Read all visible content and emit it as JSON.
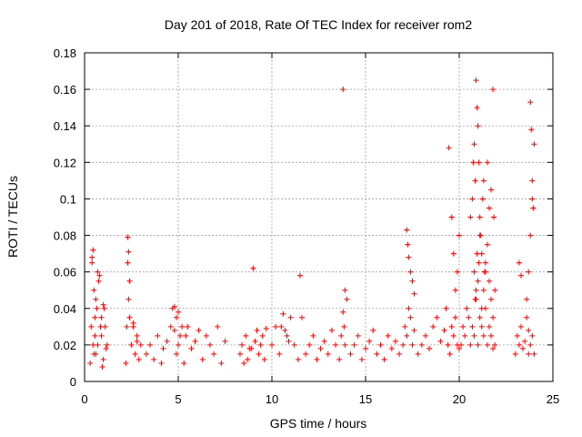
{
  "chart_data": {
    "type": "scatter",
    "title": "Day 201 of 2018, Rate Of TEC Index for receiver rom2",
    "xlabel": "GPS time / hours",
    "ylabel": "ROTI / TECUs",
    "xlim": [
      0,
      25
    ],
    "ylim": [
      0,
      0.18
    ],
    "x_ticks": [
      "0",
      "5",
      "10",
      "15",
      "20",
      "25"
    ],
    "y_ticks": [
      "0",
      "0.02",
      "0.04",
      "0.06",
      "0.08",
      "0.1",
      "0.12",
      "0.14",
      "0.16",
      "0.18"
    ],
    "grid": true,
    "marker": "plus",
    "color": "#ff0000",
    "series": [
      {
        "x": [
          0.3,
          0.35,
          0.4,
          0.45,
          0.5,
          0.55,
          0.6,
          0.65,
          0.7,
          0.8,
          0.9,
          1.0,
          1.1,
          1.2,
          0.4,
          0.5,
          0.6,
          0.75,
          0.85,
          0.95,
          1.05,
          1.15,
          0.45,
          0.55,
          0.7,
          0.9,
          1.0,
          2.2,
          2.25,
          2.3,
          2.35,
          2.4,
          2.5,
          2.6,
          2.7,
          2.8,
          2.9,
          3.0,
          2.3,
          2.35,
          2.4,
          2.6,
          2.8,
          3.3,
          3.5,
          3.7,
          3.9,
          4.1,
          4.2,
          4.4,
          4.6,
          4.7,
          4.8,
          4.9,
          5.0,
          5.1,
          5.3,
          5.5,
          5.7,
          5.9,
          6.1,
          6.3,
          6.5,
          6.7,
          6.9,
          7.1,
          7.3,
          7.5,
          4.8,
          4.9,
          5.0,
          5.2,
          5.4,
          8.3,
          8.4,
          8.5,
          8.6,
          8.7,
          8.8,
          9.0,
          9.1,
          9.2,
          9.3,
          9.4,
          9.5,
          9.6,
          9.7,
          8.9,
          10.0,
          10.2,
          10.4,
          10.6,
          10.8,
          11.0,
          11.2,
          11.4,
          10.5,
          10.7,
          10.9,
          11.5,
          11.6,
          11.8,
          12.0,
          12.2,
          12.4,
          12.6,
          12.8,
          13.0,
          13.2,
          13.4,
          13.6,
          13.7,
          13.8,
          13.9,
          14.0,
          13.8,
          13.85,
          13.9,
          14.2,
          14.4,
          14.6,
          14.8,
          15.0,
          15.2,
          15.4,
          15.6,
          15.8,
          16.0,
          16.2,
          16.4,
          16.6,
          16.8,
          17.0,
          17.1,
          17.2,
          17.3,
          17.4,
          17.5,
          17.6,
          17.2,
          17.25,
          17.3,
          17.4,
          17.5,
          17.6,
          17.8,
          18.0,
          18.2,
          18.4,
          18.6,
          18.8,
          19.0,
          19.2,
          19.3,
          19.4,
          19.5,
          19.6,
          19.7,
          19.8,
          19.9,
          20.0,
          19.45,
          19.6,
          19.7,
          19.8,
          19.9,
          20.0,
          20.1,
          20.2,
          20.3,
          20.4,
          20.5,
          20.6,
          20.7,
          20.8,
          20.9,
          21.0,
          21.1,
          21.2,
          21.3,
          21.4,
          21.5,
          21.6,
          21.7,
          21.8,
          21.9,
          20.6,
          20.7,
          20.75,
          20.8,
          20.85,
          20.9,
          20.95,
          21.0,
          21.05,
          21.1,
          21.15,
          21.2,
          21.25,
          21.3,
          21.35,
          21.4,
          21.5,
          21.6,
          21.7,
          21.8,
          21.85,
          21.9,
          20.8,
          20.85,
          20.9,
          20.95,
          21.0,
          21.05,
          21.1,
          21.2,
          21.3,
          21.4,
          21.5,
          21.6,
          21.7,
          21.8,
          23.0,
          23.1,
          23.2,
          23.3,
          23.4,
          23.5,
          23.6,
          23.7,
          23.8,
          23.9,
          24.0,
          23.2,
          23.3,
          23.6,
          23.7,
          23.8,
          23.9,
          23.95,
          24.0,
          23.7,
          23.8,
          23.85,
          23.9
        ],
        "y": [
          0.01,
          0.03,
          0.065,
          0.072,
          0.05,
          0.025,
          0.015,
          0.04,
          0.02,
          0.058,
          0.035,
          0.012,
          0.03,
          0.02,
          0.068,
          0.015,
          0.045,
          0.055,
          0.03,
          0.008,
          0.04,
          0.018,
          0.02,
          0.035,
          0.06,
          0.025,
          0.042,
          0.01,
          0.03,
          0.079,
          0.071,
          0.055,
          0.02,
          0.032,
          0.015,
          0.025,
          0.012,
          0.02,
          0.065,
          0.045,
          0.035,
          0.03,
          0.022,
          0.015,
          0.02,
          0.012,
          0.025,
          0.01,
          0.018,
          0.022,
          0.03,
          0.04,
          0.041,
          0.015,
          0.02,
          0.025,
          0.01,
          0.03,
          0.018,
          0.022,
          0.028,
          0.012,
          0.025,
          0.02,
          0.015,
          0.03,
          0.01,
          0.022,
          0.028,
          0.035,
          0.038,
          0.03,
          0.025,
          0.015,
          0.02,
          0.01,
          0.025,
          0.012,
          0.018,
          0.062,
          0.022,
          0.028,
          0.015,
          0.02,
          0.025,
          0.012,
          0.029,
          0.018,
          0.02,
          0.03,
          0.015,
          0.037,
          0.025,
          0.035,
          0.02,
          0.012,
          0.03,
          0.028,
          0.022,
          0.058,
          0.035,
          0.015,
          0.02,
          0.025,
          0.012,
          0.018,
          0.022,
          0.015,
          0.028,
          0.02,
          0.012,
          0.025,
          0.16,
          0.05,
          0.045,
          0.038,
          0.03,
          0.02,
          0.015,
          0.02,
          0.025,
          0.012,
          0.018,
          0.022,
          0.028,
          0.015,
          0.02,
          0.012,
          0.025,
          0.018,
          0.022,
          0.015,
          0.02,
          0.03,
          0.025,
          0.04,
          0.035,
          0.02,
          0.028,
          0.083,
          0.075,
          0.068,
          0.06,
          0.055,
          0.048,
          0.015,
          0.02,
          0.025,
          0.018,
          0.03,
          0.035,
          0.022,
          0.028,
          0.04,
          0.02,
          0.015,
          0.03,
          0.025,
          0.035,
          0.02,
          0.018,
          0.128,
          0.09,
          0.07,
          0.05,
          0.06,
          0.08,
          0.02,
          0.03,
          0.025,
          0.04,
          0.035,
          0.02,
          0.03,
          0.025,
          0.045,
          0.02,
          0.035,
          0.03,
          0.025,
          0.04,
          0.02,
          0.03,
          0.025,
          0.018,
          0.02,
          0.09,
          0.1,
          0.12,
          0.13,
          0.11,
          0.165,
          0.15,
          0.14,
          0.12,
          0.09,
          0.08,
          0.07,
          0.1,
          0.11,
          0.06,
          0.065,
          0.12,
          0.095,
          0.105,
          0.16,
          0.09,
          0.05,
          0.06,
          0.045,
          0.05,
          0.07,
          0.055,
          0.065,
          0.08,
          0.04,
          0.05,
          0.06,
          0.075,
          0.055,
          0.045,
          0.035,
          0.015,
          0.025,
          0.02,
          0.03,
          0.018,
          0.022,
          0.035,
          0.028,
          0.02,
          0.025,
          0.015,
          0.065,
          0.058,
          0.045,
          0.06,
          0.08,
          0.11,
          0.095,
          0.13,
          0.015,
          0.153,
          0.138,
          0.1
        ]
      }
    ]
  }
}
